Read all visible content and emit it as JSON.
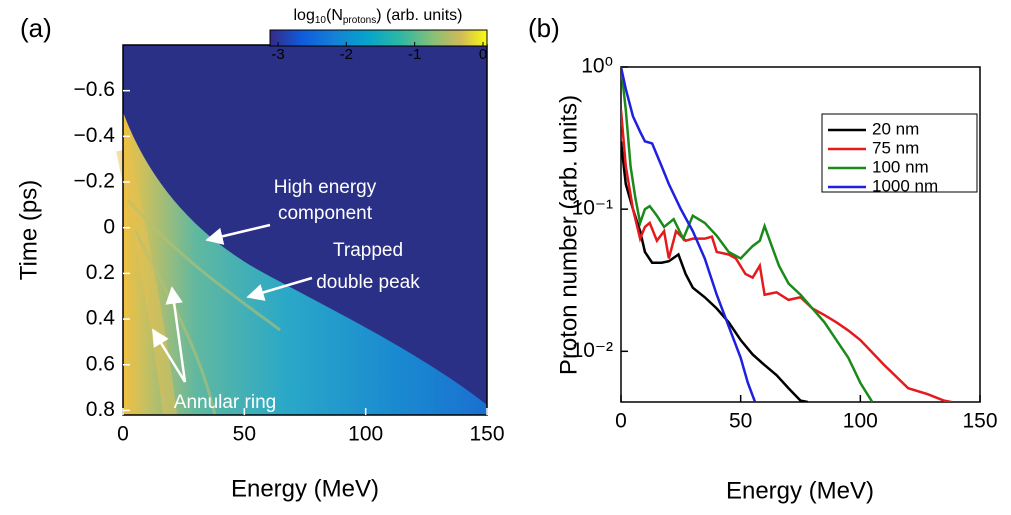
{
  "chart_data": [
    {
      "type": "heatmap",
      "panel_label": "(a)",
      "xlabel": "Energy (MeV)",
      "ylabel": "Time (ps)",
      "xlim": [
        0,
        150
      ],
      "xticks": [
        0,
        50,
        100,
        150
      ],
      "ylim": [
        -0.8,
        0.82
      ],
      "y_inverted": true,
      "yticks": [
        {
          "value": -0.6,
          "label": "−0.6"
        },
        {
          "value": -0.4,
          "label": "−0.4"
        },
        {
          "value": -0.2,
          "label": "−0.2"
        },
        0,
        0.2,
        0.4,
        0.6,
        0.8
      ],
      "colorbar": {
        "label": [
          "log",
          "10",
          "(N",
          "protons",
          ") (arb. units)"
        ],
        "clim": [
          -3,
          0
        ],
        "ticks": [
          -3,
          -2,
          -1,
          0
        ]
      },
      "annotations": [
        [
          "High energy",
          "component"
        ],
        [
          "Trapped",
          "double peak"
        ],
        [
          "Annular ring"
        ]
      ]
    },
    {
      "type": "line",
      "panel_label": "(b)",
      "xlabel": "Energy (MeV)",
      "ylabel": "Proton number (arb. units)",
      "xlim": [
        0,
        150
      ],
      "xticks": [
        0,
        50,
        100,
        150
      ],
      "ylim": [
        0.0044,
        1
      ],
      "yscale": "log",
      "yticks": [
        {
          "value": 0.01,
          "label": "10⁻²"
        },
        {
          "value": 0.1,
          "label": "10⁻¹"
        },
        {
          "value": 1,
          "label": "10⁰"
        }
      ],
      "legend": "upper right",
      "series": [
        {
          "name": "20 nm",
          "color": "#000000",
          "x": [
            0,
            2,
            5,
            8,
            10,
            13,
            17,
            20,
            24,
            27,
            30,
            35,
            40,
            45,
            50,
            55,
            60,
            65,
            70,
            75,
            78
          ],
          "values": [
            0.3,
            0.15,
            0.1,
            0.07,
            0.05,
            0.042,
            0.042,
            0.043,
            0.048,
            0.035,
            0.028,
            0.024,
            0.02,
            0.016,
            0.012,
            0.0095,
            0.008,
            0.0068,
            0.0055,
            0.0045,
            0.0044
          ]
        },
        {
          "name": "75 nm",
          "color": "#e41a1c",
          "x": [
            0,
            2,
            5,
            8,
            10,
            12,
            15,
            18,
            20,
            23,
            27,
            30,
            35,
            38,
            40,
            45,
            48,
            52,
            55,
            58,
            60,
            65,
            70,
            75,
            80,
            85,
            90,
            95,
            100,
            110,
            120,
            128,
            135,
            138
          ],
          "values": [
            0.5,
            0.2,
            0.1,
            0.062,
            0.075,
            0.08,
            0.06,
            0.07,
            0.045,
            0.07,
            0.06,
            0.062,
            0.062,
            0.064,
            0.05,
            0.048,
            0.045,
            0.035,
            0.033,
            0.04,
            0.025,
            0.026,
            0.023,
            0.024,
            0.02,
            0.018,
            0.016,
            0.014,
            0.012,
            0.008,
            0.0055,
            0.005,
            0.0045,
            0.0044
          ]
        },
        {
          "name": "100 nm",
          "color": "#1a8a1a",
          "x": [
            0,
            2,
            4,
            6,
            8,
            10,
            12,
            15,
            18,
            22,
            26,
            30,
            35,
            40,
            45,
            50,
            55,
            58,
            60,
            63,
            66,
            70,
            75,
            80,
            85,
            90,
            95,
            100,
            105
          ],
          "values": [
            1,
            0.5,
            0.2,
            0.12,
            0.08,
            0.1,
            0.105,
            0.09,
            0.075,
            0.085,
            0.062,
            0.09,
            0.08,
            0.065,
            0.05,
            0.045,
            0.055,
            0.06,
            0.076,
            0.055,
            0.04,
            0.03,
            0.025,
            0.02,
            0.016,
            0.012,
            0.009,
            0.006,
            0.0044
          ]
        },
        {
          "name": "1000 nm",
          "color": "#1f1fe0",
          "x": [
            0,
            2,
            5,
            8,
            10,
            13,
            17,
            20,
            25,
            30,
            35,
            40,
            45,
            50,
            53,
            56
          ],
          "values": [
            1,
            0.7,
            0.45,
            0.35,
            0.3,
            0.29,
            0.2,
            0.15,
            0.1,
            0.07,
            0.045,
            0.025,
            0.015,
            0.009,
            0.006,
            0.0044
          ]
        }
      ]
    }
  ]
}
